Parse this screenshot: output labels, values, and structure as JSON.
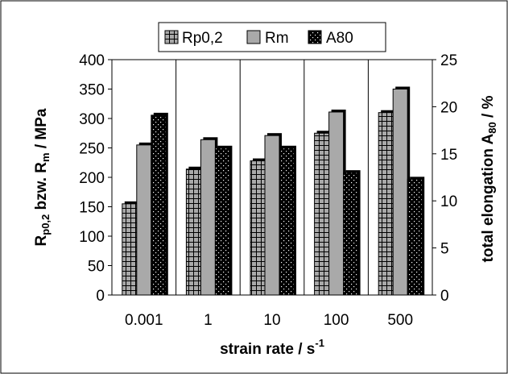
{
  "chart_data": {
    "type": "bar",
    "categories": [
      "0.001",
      "1",
      "10",
      "100",
      "500"
    ],
    "xlabel": "strain rate / s-1",
    "xlabel_main": "strain rate / s",
    "xlabel_sup": "-1",
    "ylabel_left": "Rp0,2 bzw. Rm / MPa",
    "ylabel_left_parts": {
      "r1": "R",
      "sub1": "p0,2",
      "mid": " bzw. R",
      "sub2": "m",
      "end": " / MPa"
    },
    "ylabel_right": "total elongation A80 / %",
    "ylabel_right_parts": {
      "main": "total elongation A",
      "sub": "80",
      "end": " / %"
    },
    "ylim_left": [
      0,
      400
    ],
    "yticks_left": [
      "0",
      "50",
      "100",
      "150",
      "200",
      "250",
      "300",
      "350",
      "400"
    ],
    "ylim_right": [
      0,
      25
    ],
    "yticks_right": [
      "0",
      "5",
      "10",
      "15",
      "20",
      "25"
    ],
    "grid": "vertical",
    "legend_position": "top-center",
    "series": [
      {
        "name": "Rp0,2",
        "axis": "left",
        "pattern": "grid",
        "values": [
          155,
          214,
          228,
          275,
          310
        ]
      },
      {
        "name": "Rm",
        "axis": "left",
        "pattern": "gray",
        "values": [
          255,
          264,
          271,
          311,
          350
        ]
      },
      {
        "name": "A80",
        "axis": "right",
        "pattern": "dots",
        "values": [
          19.1,
          15.6,
          15.6,
          13.0,
          12.3
        ]
      }
    ]
  }
}
